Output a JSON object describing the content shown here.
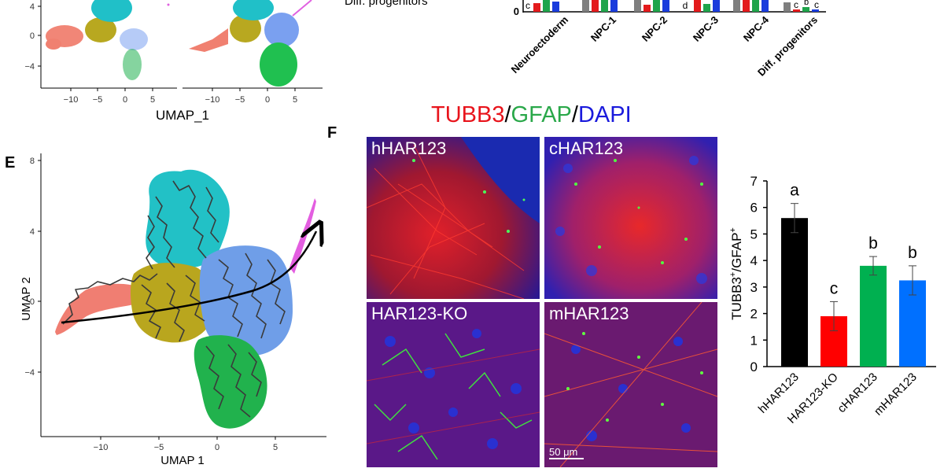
{
  "panels": {
    "E": "E",
    "F": "F"
  },
  "top_left": {
    "y_ticks": [
      "4",
      "0",
      "−4"
    ],
    "left_x_ticks": [
      "−10",
      "−5",
      "0",
      "5"
    ],
    "right_x_ticks": [
      "−10",
      "−5",
      "0",
      "5"
    ],
    "xlabel": "UMAP_1",
    "legend_partial": "Diff. progenitors"
  },
  "top_right": {
    "y_tick": "0",
    "categories": [
      "Neuroectoderm",
      "NPC-1",
      "NPC-2",
      "NPC-3",
      "NPC-4",
      "Diff. progenitors"
    ],
    "letters": [
      "c",
      "d",
      "c",
      "b",
      "c"
    ]
  },
  "panel_e": {
    "y_ticks": [
      "8",
      "4",
      "0",
      "−4"
    ],
    "x_ticks": [
      "−10",
      "−5",
      "0",
      "5"
    ],
    "xlabel": "UMAP 1",
    "ylabel": "UMAP 2"
  },
  "stain_title": {
    "tubb3": "TUBB3",
    "slash1": "/",
    "gfap": "GFAP",
    "slash2": "/",
    "dapi": "DAPI",
    "colors": {
      "tubb3": "#e8141c",
      "gfap": "#2aa84a",
      "dapi": "#1a1adc"
    }
  },
  "images": [
    {
      "label": "hHAR123"
    },
    {
      "label": "cHAR123"
    },
    {
      "label": "HAR123-KO"
    },
    {
      "label": "mHAR123"
    }
  ],
  "scale_bar": "50 μm",
  "chart_data": {
    "type": "bar",
    "categories": [
      "hHAR123",
      "HAR123-KO",
      "cHAR123",
      "mHAR123"
    ],
    "values": [
      5.6,
      1.9,
      3.8,
      3.25
    ],
    "errors": [
      0.55,
      0.55,
      0.35,
      0.55
    ],
    "letters": [
      "a",
      "c",
      "b",
      "b"
    ],
    "colors": [
      "#000000",
      "#ff0000",
      "#00b050",
      "#0070ff"
    ],
    "ylim": [
      0,
      7
    ],
    "yticks": [
      "0",
      "1",
      "2",
      "3",
      "4",
      "5",
      "6",
      "7"
    ],
    "ylabel_main": "TUBB3",
    "ylabel_sup1": "+",
    "ylabel_mid": "/GFAP",
    "ylabel_sup2": "+"
  }
}
